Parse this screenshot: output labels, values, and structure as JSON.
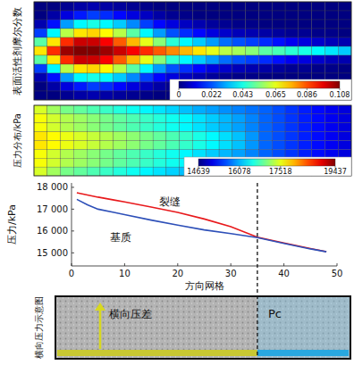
{
  "chart_data": [
    {
      "type": "heatmap",
      "y_label": "表面活性剂摩尔分数",
      "cells": [
        [
          0,
          0,
          0.002,
          0.004,
          0.005,
          0.004,
          0.003,
          0.002,
          0.001,
          0,
          0,
          0,
          0,
          0,
          0,
          0,
          0,
          0,
          0,
          0,
          0,
          0,
          0,
          0
        ],
        [
          0,
          0.004,
          0.01,
          0.016,
          0.02,
          0.018,
          0.014,
          0.01,
          0.007,
          0.004,
          0.002,
          0.001,
          0,
          0,
          0,
          0,
          0,
          0,
          0,
          0,
          0,
          0,
          0,
          0
        ],
        [
          0.005,
          0.015,
          0.03,
          0.04,
          0.043,
          0.04,
          0.035,
          0.028,
          0.02,
          0.014,
          0.01,
          0.007,
          0.005,
          0.003,
          0.002,
          0.001,
          0.001,
          0,
          0,
          0,
          0,
          0,
          0,
          0
        ],
        [
          0.02,
          0.04,
          0.06,
          0.07,
          0.072,
          0.068,
          0.06,
          0.05,
          0.04,
          0.03,
          0.022,
          0.018,
          0.014,
          0.01,
          0.008,
          0.006,
          0.005,
          0.004,
          0.003,
          0.002,
          0.002,
          0.001,
          0.001,
          0
        ],
        [
          0.05,
          0.07,
          0.09,
          0.1,
          0.1,
          0.095,
          0.085,
          0.075,
          0.065,
          0.055,
          0.045,
          0.04,
          0.035,
          0.03,
          0.025,
          0.022,
          0.02,
          0.018,
          0.015,
          0.012,
          0.01,
          0.008,
          0.006,
          0.005
        ],
        [
          0.07,
          0.09,
          0.105,
          0.108,
          0.108,
          0.105,
          0.1,
          0.095,
          0.09,
          0.085,
          0.08,
          0.075,
          0.07,
          0.065,
          0.06,
          0.058,
          0.055,
          0.05,
          0.048,
          0.045,
          0.043,
          0.04,
          0.038,
          0.035
        ],
        [
          0.05,
          0.07,
          0.09,
          0.1,
          0.1,
          0.095,
          0.085,
          0.075,
          0.065,
          0.055,
          0.045,
          0.04,
          0.035,
          0.03,
          0.025,
          0.022,
          0.02,
          0.018,
          0.015,
          0.012,
          0.01,
          0.008,
          0.006,
          0.005
        ],
        [
          0.02,
          0.04,
          0.06,
          0.07,
          0.072,
          0.068,
          0.06,
          0.05,
          0.04,
          0.03,
          0.022,
          0.018,
          0.014,
          0.01,
          0.008,
          0.006,
          0.005,
          0.004,
          0.003,
          0.002,
          0.002,
          0.001,
          0.001,
          0
        ],
        [
          0.005,
          0.015,
          0.03,
          0.04,
          0.043,
          0.04,
          0.035,
          0.028,
          0.02,
          0.014,
          0.01,
          0.007,
          0.005,
          0.003,
          0.002,
          0.001,
          0.001,
          0,
          0,
          0,
          0,
          0,
          0,
          0
        ],
        [
          0,
          0.004,
          0.01,
          0.016,
          0.02,
          0.018,
          0.014,
          0.01,
          0.007,
          0.004,
          0.002,
          0.001,
          0,
          0,
          0,
          0,
          0,
          0,
          0,
          0,
          0,
          0,
          0,
          0
        ],
        [
          0,
          0,
          0.002,
          0.004,
          0.005,
          0.004,
          0.003,
          0.002,
          0.001,
          0,
          0,
          0,
          0,
          0,
          0,
          0,
          0,
          0,
          0,
          0,
          0,
          0,
          0,
          0
        ]
      ],
      "colorbar": {
        "lim": [
          0,
          0.108
        ],
        "ticks": [
          0,
          0.022,
          0.043,
          0.065,
          0.086,
          0.108
        ]
      }
    },
    {
      "type": "heatmap",
      "y_label": "压力分布/kPa",
      "cells": [
        [
          17450,
          17200,
          17000,
          16900,
          16800,
          16700,
          16600,
          16500,
          16400,
          16310,
          16230,
          16140,
          16050,
          15980,
          15910,
          15840,
          15770,
          15700,
          15590,
          15480,
          15370,
          15270,
          15170,
          15080
        ],
        [
          17600,
          17425,
          17275,
          17180,
          17085,
          16990,
          16895,
          16800,
          16700,
          16605,
          16510,
          16410,
          16300,
          16200,
          16100,
          15995,
          15860,
          15710,
          15595,
          15485,
          15375,
          15275,
          15175,
          15085
        ],
        [
          17600,
          17425,
          17275,
          17180,
          17085,
          16990,
          16895,
          16800,
          16700,
          16605,
          16510,
          16410,
          16300,
          16200,
          16100,
          15995,
          15860,
          15710,
          15595,
          15485,
          15375,
          15275,
          15175,
          15085
        ],
        [
          17750,
          17650,
          17550,
          17460,
          17370,
          17280,
          17190,
          17100,
          17000,
          16900,
          16790,
          16680,
          16550,
          16420,
          16290,
          16150,
          15950,
          15720,
          15600,
          15490,
          15380,
          15280,
          15180,
          15090
        ],
        [
          17750,
          17650,
          17550,
          17460,
          17370,
          17280,
          17190,
          17100,
          17000,
          16900,
          16790,
          16680,
          16550,
          16420,
          16290,
          16150,
          15950,
          15720,
          15600,
          15490,
          15380,
          15280,
          15180,
          15090
        ],
        [
          17600,
          17425,
          17275,
          17180,
          17085,
          16990,
          16895,
          16800,
          16700,
          16605,
          16510,
          16410,
          16300,
          16200,
          16100,
          15995,
          15860,
          15710,
          15595,
          15485,
          15375,
          15275,
          15175,
          15085
        ],
        [
          17600,
          17425,
          17275,
          17180,
          17085,
          16990,
          16895,
          16800,
          16700,
          16605,
          16510,
          16410,
          16300,
          16200,
          16100,
          15995,
          15860,
          15710,
          15595,
          15485,
          15375,
          15275,
          15175,
          15085
        ],
        [
          17450,
          17200,
          17000,
          16900,
          16800,
          16700,
          16600,
          16500,
          16400,
          16310,
          16230,
          16140,
          16050,
          15980,
          15910,
          15840,
          15770,
          15700,
          15590,
          15480,
          15370,
          15270,
          15170,
          15080
        ]
      ],
      "colorbar": {
        "lim": [
          14639,
          19437
        ],
        "ticks": [
          14639,
          16078,
          17518,
          19437
        ]
      }
    },
    {
      "type": "line",
      "x_label": "方向网格",
      "y_label": "压力/kPa",
      "x": [
        1,
        3,
        5,
        8,
        10,
        15,
        20,
        25,
        30,
        35,
        40,
        45,
        48
      ],
      "series": [
        {
          "name": "裂缝",
          "color": "#e8191c",
          "values": [
            17750,
            17650,
            17550,
            17420,
            17330,
            17100,
            16850,
            16550,
            16200,
            15720,
            15450,
            15200,
            15050
          ]
        },
        {
          "name": "基质",
          "color": "#2d4fb8",
          "values": [
            17450,
            17200,
            17000,
            16850,
            16750,
            16500,
            16270,
            16050,
            15880,
            15700,
            15430,
            15180,
            15050
          ]
        }
      ],
      "xlim": [
        0,
        50
      ],
      "xticks": [
        0,
        10,
        20,
        30,
        40,
        50
      ],
      "ylim": [
        14400,
        18200
      ],
      "yticks": [
        {
          "value": 15000,
          "label": "15 000"
        },
        {
          "value": 16000,
          "label": "16 000"
        },
        {
          "value": 17000,
          "label": "17 000"
        },
        {
          "value": 18000,
          "label": "18 000"
        }
      ],
      "vline_x": 35
    }
  ],
  "schematic": {
    "label": "横向压力示意图",
    "annotations": [
      "横向压差",
      "Pc"
    ]
  }
}
